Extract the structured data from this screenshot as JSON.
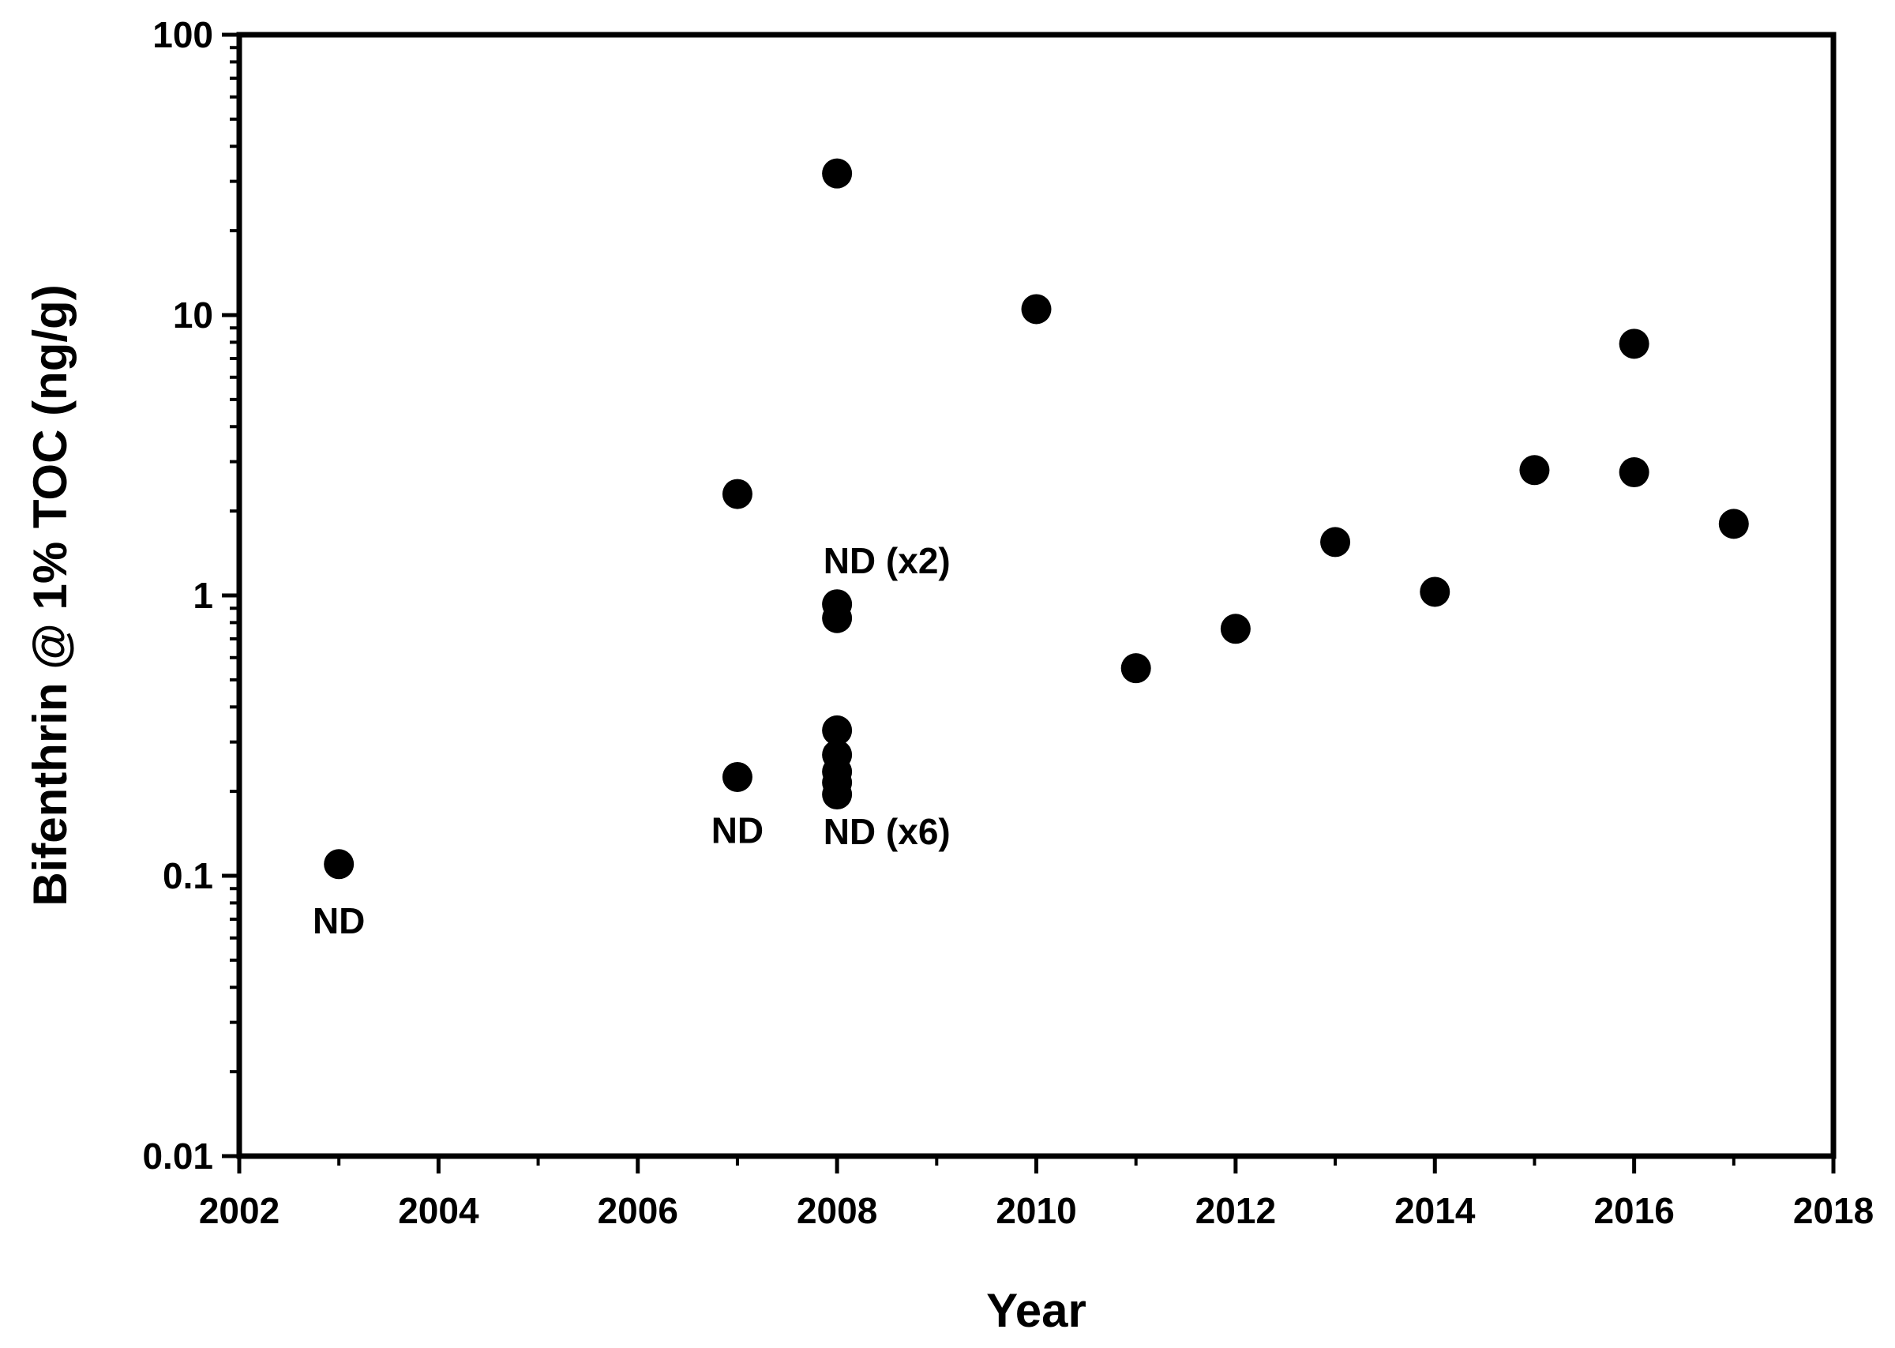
{
  "chart_data": {
    "type": "scatter",
    "title": "",
    "xlabel": "Year",
    "ylabel": "Bifenthrin @ 1% TOC (ng/g)",
    "xlim": [
      2002,
      2018
    ],
    "ylim": [
      0.01,
      100
    ],
    "yscale": "log",
    "grid": false,
    "legend": "none",
    "x_ticks": [
      "2002",
      "2004",
      "2006",
      "2008",
      "2010",
      "2012",
      "2014",
      "2016",
      "2018"
    ],
    "y_ticks": [
      "0.01",
      "0.1",
      "1",
      "10",
      "100"
    ],
    "points": [
      {
        "x": 2003,
        "y": 0.11
      },
      {
        "x": 2007,
        "y": 2.3
      },
      {
        "x": 2007,
        "y": 0.225
      },
      {
        "x": 2008,
        "y": 32
      },
      {
        "x": 2008,
        "y": 0.93
      },
      {
        "x": 2008,
        "y": 0.83
      },
      {
        "x": 2008,
        "y": 0.33
      },
      {
        "x": 2008,
        "y": 0.27
      },
      {
        "x": 2008,
        "y": 0.235
      },
      {
        "x": 2008,
        "y": 0.215
      },
      {
        "x": 2008,
        "y": 0.195
      },
      {
        "x": 2010,
        "y": 10.5
      },
      {
        "x": 2011,
        "y": 0.55
      },
      {
        "x": 2012,
        "y": 0.76
      },
      {
        "x": 2013,
        "y": 1.55
      },
      {
        "x": 2014,
        "y": 1.03
      },
      {
        "x": 2015,
        "y": 2.8
      },
      {
        "x": 2016,
        "y": 7.9
      },
      {
        "x": 2016,
        "y": 2.75
      },
      {
        "x": 2017,
        "y": 1.8
      }
    ],
    "annotations": [
      {
        "text": "ND",
        "x": 2003,
        "y": 0.069
      },
      {
        "text": "ND",
        "x": 2007,
        "y": 0.145
      },
      {
        "text": "ND (x2)",
        "x": 2008.5,
        "y": 1.33
      },
      {
        "text": "ND (x6)",
        "x": 2008.5,
        "y": 0.144
      }
    ],
    "marker_color": "#000000"
  }
}
